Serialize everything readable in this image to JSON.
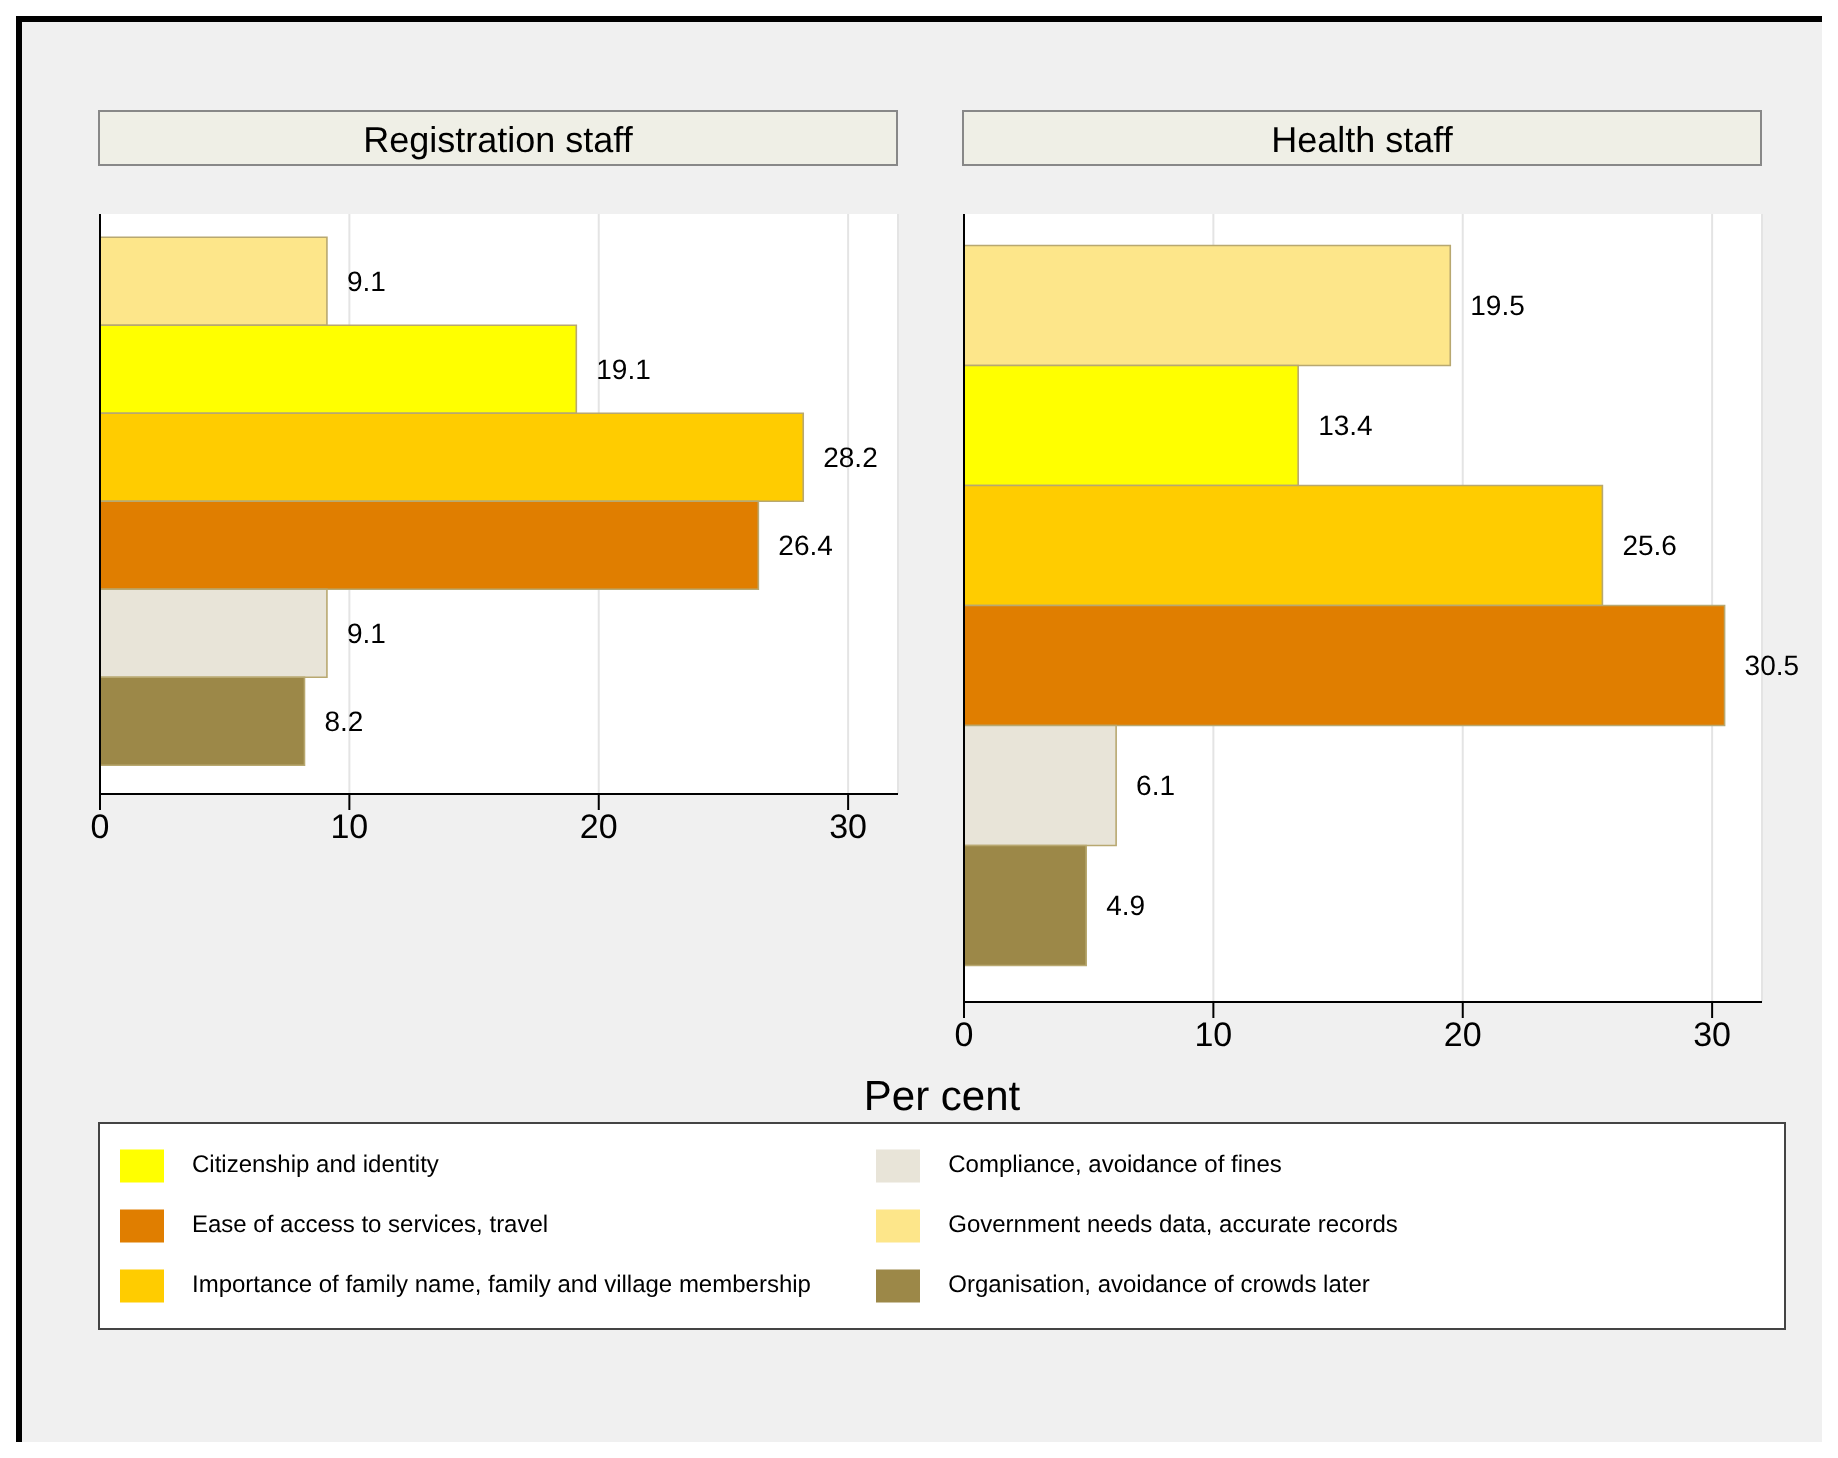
{
  "chart_data": [
    {
      "type": "bar",
      "orientation": "horizontal",
      "title": "Registration staff",
      "xlabel": "Per cent",
      "categories": [
        null
      ],
      "xlim": [
        0,
        32
      ],
      "xticks": [
        0,
        10,
        20,
        30
      ],
      "grid": "x",
      "legend": "bottom",
      "data_labels": true,
      "series": [
        {
          "name": "Government needs data, accurate records",
          "color": "#fde68a",
          "values": [
            9.1
          ]
        },
        {
          "name": "Citizenship and identity",
          "color": "#ffff00",
          "values": [
            19.1
          ]
        },
        {
          "name": "Importance of family name, family and village membership",
          "color": "#ffcc00",
          "values": [
            28.2
          ]
        },
        {
          "name": "Ease of access to services, travel",
          "color": "#e07e00",
          "values": [
            26.4
          ]
        },
        {
          "name": "Compliance, avoidance of fines",
          "color": "#e8e4d8",
          "values": [
            9.1
          ]
        },
        {
          "name": "Organisation, avoidance of crowds later",
          "color": "#9c8848",
          "values": [
            8.2
          ]
        }
      ]
    },
    {
      "type": "bar",
      "orientation": "horizontal",
      "title": "Health staff",
      "categories": [
        null
      ],
      "xlim": [
        0,
        32
      ],
      "xticks": [
        0,
        10,
        20,
        30
      ],
      "grid": "x",
      "data_labels": true,
      "series": [
        {
          "color": "#fde68a",
          "values": [
            19.5
          ]
        },
        {
          "color": "#ffff00",
          "values": [
            13.4
          ]
        },
        {
          "color": "#ffcc00",
          "values": [
            25.6
          ]
        },
        {
          "color": "#e07e00",
          "values": [
            30.5
          ]
        },
        {
          "color": "#e8e4d8",
          "values": [
            6.1
          ]
        },
        {
          "color": "#9c8848",
          "values": [
            4.9
          ]
        }
      ]
    }
  ]
}
